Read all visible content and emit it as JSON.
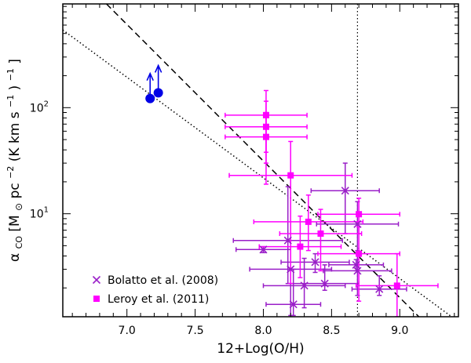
{
  "chart_data": {
    "type": "scatter",
    "xlabel": "12+Log(O/H)",
    "ylabel_main": "α",
    "ylabel_sub": "CO",
    "ylabel_rest": " [M",
    "ylabel_sun": "⊙",
    "ylabel_tail": " pc",
    "ylabel_exp1": "−2",
    "ylabel_mid": " (K km s",
    "ylabel_exp2": "−1",
    "ylabel_end": ")",
    "ylabel_exp3": "−1",
    "ylabel_close": " ]",
    "xlim": [
      6.53,
      9.43
    ],
    "ylim": [
      1.07,
      950
    ],
    "yscale": "log",
    "xticks": [
      7.0,
      7.5,
      8.0,
      8.5,
      9.0
    ],
    "xtick_labels": [
      "7.0",
      "7.5",
      "8.0",
      "8.5",
      "9.0"
    ],
    "yticks_major": [
      10,
      100
    ],
    "ytick_base": "10",
    "ytick_exps": [
      "1",
      "2"
    ],
    "colors": {
      "bolatto": "#9a1fc8",
      "leroy": "#ff00ff",
      "limits": "#0000e6",
      "axes": "#000000"
    },
    "reference_lines": {
      "vertical_x": 8.69,
      "dashed": {
        "x1": 6.85,
        "y1": 950,
        "x2": 9.14,
        "y2": 1.07
      },
      "dotted": {
        "x1": 6.53,
        "y1": 540,
        "x2": 9.38,
        "y2": 1.07
      }
    },
    "series": [
      {
        "name": "Bolatto et al. (2008)",
        "marker": "x",
        "points": [
          {
            "x": 8.18,
            "y": 5.6,
            "xerr": 0.4,
            "ylo": 2.2,
            "yhi": 18
          },
          {
            "x": 8.6,
            "y": 16.5,
            "xerr": 0.25,
            "ylo": 6.5,
            "yhi": 30
          },
          {
            "x": 8.0,
            "y": 4.6,
            "xerr": 0.2,
            "ylo": 4.3,
            "yhi": 4.9
          },
          {
            "x": 8.69,
            "y": 8.0,
            "xerr": 0.3,
            "ylo": 4.5,
            "yhi": 13
          },
          {
            "x": 8.45,
            "y": 2.2,
            "xerr": 0.25,
            "ylo": 1.9,
            "yhi": 3.3
          },
          {
            "x": 8.38,
            "y": 3.5,
            "xerr": 0.25,
            "ylo": 2.8,
            "yhi": 4.2
          },
          {
            "x": 8.3,
            "y": 2.1,
            "xerr": 0.3,
            "ylo": 1.3,
            "yhi": 3.8
          },
          {
            "x": 8.2,
            "y": 3.0,
            "xerr": 0.3,
            "ylo": 1.1,
            "yhi": 5.6
          },
          {
            "x": 8.22,
            "y": 1.4,
            "xerr": 0.2,
            "ylo": 1.1,
            "yhi": 3.0
          },
          {
            "x": 8.69,
            "y": 2.9,
            "xerr": 0.25,
            "ylo": 1.7,
            "yhi": 4.2
          },
          {
            "x": 8.85,
            "y": 1.95,
            "xerr": 0.2,
            "ylo": 1.7,
            "yhi": 2.6
          },
          {
            "x": 8.68,
            "y": 3.3,
            "xerr": 0.2,
            "ylo": 2.9,
            "yhi": 3.7
          }
        ]
      },
      {
        "name": "Leroy et al. (2011)",
        "marker": "s",
        "points": [
          {
            "x": 8.02,
            "y": 85,
            "xerr": 0.3,
            "ylo": 38,
            "yhi": 145
          },
          {
            "x": 8.02,
            "y": 66,
            "xerr": 0.3,
            "ylo": 30,
            "yhi": 115
          },
          {
            "x": 8.02,
            "y": 53,
            "xerr": 0.3,
            "ylo": 19,
            "yhi": 90
          },
          {
            "x": 8.2,
            "y": 23,
            "xerr": 0.45,
            "ylo": 2.2,
            "yhi": 48
          },
          {
            "x": 8.33,
            "y": 8.4,
            "xerr": 0.4,
            "ylo": 4.5,
            "yhi": 15
          },
          {
            "x": 8.42,
            "y": 6.5,
            "xerr": 0.3,
            "ylo": 2.9,
            "yhi": 11
          },
          {
            "x": 8.27,
            "y": 4.9,
            "xerr": 0.3,
            "ylo": 2.5,
            "yhi": 9.5
          },
          {
            "x": 8.7,
            "y": 9.9,
            "xerr": 0.3,
            "ylo": 6.5,
            "yhi": 14
          },
          {
            "x": 8.7,
            "y": 4.2,
            "xerr": 0.3,
            "ylo": 1.5,
            "yhi": 7.5
          },
          {
            "x": 8.98,
            "y": 2.1,
            "xerr": 0.3,
            "ylo": 1.07,
            "yhi": 4.2
          }
        ]
      },
      {
        "name": "",
        "marker": "o-lower-limit",
        "points": [
          {
            "x": 7.17,
            "y": 122,
            "arrow_to": 210
          },
          {
            "x": 7.23,
            "y": 138,
            "arrow_to": 250
          }
        ]
      }
    ],
    "legend": {
      "placement": "bottom-left",
      "entries": [
        "Bolatto et al. (2008)",
        "Leroy et al. (2011)"
      ]
    }
  }
}
